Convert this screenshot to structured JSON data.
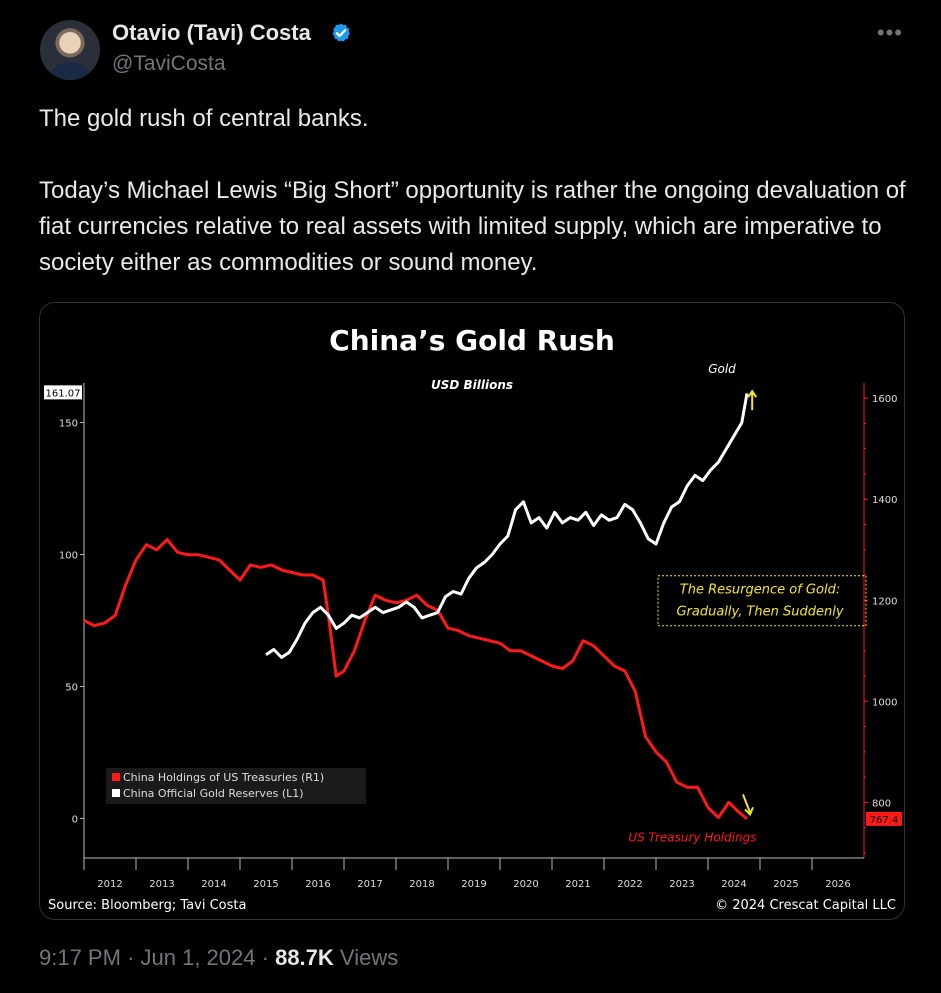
{
  "author": {
    "name": "Otavio (Tavi) Costa",
    "handle": "@TaviCosta"
  },
  "tweet": {
    "paragraph1": "The gold rush of central banks.",
    "paragraph2": "Today’s Michael Lewis “Big Short” opportunity is rather the ongoing devaluation of fiat currencies relative to real assets with limited supply, which are imperative to society either as commodities or sound money."
  },
  "meta": {
    "time": "9:17 PM",
    "date": "Jun 1, 2024",
    "views_count": "88.7K",
    "views_label": "Views"
  },
  "colors": {
    "treasury": "#ff1a1a",
    "gold": "#ffffff",
    "accent": "#f2e62e",
    "verified": "#1d9bf0"
  },
  "icons": {
    "verified": "verified-badge-icon",
    "more": "more-icon"
  },
  "chart_data": {
    "type": "line",
    "title": "China’s Gold Rush",
    "units_label": "USD Billions",
    "left_axis": {
      "ticks": [
        "0",
        "50",
        "100",
        "150"
      ],
      "current_label": "161.07",
      "range": [
        -15,
        165
      ]
    },
    "right_axis": {
      "ticks": [
        "800",
        "1000",
        "1200",
        "1400",
        "1600"
      ],
      "current_label": "767.4",
      "range": [
        690,
        1630
      ]
    },
    "x_ticks": [
      "2012",
      "2013",
      "2014",
      "2015",
      "2016",
      "2017",
      "2018",
      "2019",
      "2020",
      "2021",
      "2022",
      "2023",
      "2024",
      "2025",
      "2026"
    ],
    "x_range": [
      2011.5,
      2026.5
    ],
    "series": [
      {
        "name": "China Holdings of US Treasuries (R1)",
        "axis": "right",
        "x": [
          2011.5,
          2011.7,
          2011.9,
          2012.1,
          2012.3,
          2012.5,
          2012.7,
          2012.9,
          2013.1,
          2013.3,
          2013.5,
          2013.7,
          2013.9,
          2014.1,
          2014.3,
          2014.5,
          2014.7,
          2014.9,
          2015.1,
          2015.3,
          2015.5,
          2015.7,
          2015.9,
          2016.1,
          2016.2,
          2016.35,
          2016.5,
          2016.7,
          2016.9,
          2017.1,
          2017.3,
          2017.5,
          2017.7,
          2017.9,
          2018.1,
          2018.3,
          2018.5,
          2018.7,
          2018.9,
          2019.1,
          2019.3,
          2019.5,
          2019.7,
          2019.9,
          2020.1,
          2020.3,
          2020.5,
          2020.7,
          2020.9,
          2021.1,
          2021.3,
          2021.5,
          2021.7,
          2021.9,
          2022.1,
          2022.3,
          2022.5,
          2022.7,
          2022.9,
          2023.1,
          2023.3,
          2023.5,
          2023.7,
          2023.9,
          2024.1,
          2024.25
        ],
        "y": [
          1160,
          1150,
          1155,
          1170,
          1230,
          1280,
          1310,
          1300,
          1320,
          1295,
          1290,
          1290,
          1285,
          1280,
          1260,
          1240,
          1270,
          1265,
          1270,
          1260,
          1255,
          1250,
          1250,
          1240,
          1170,
          1050,
          1060,
          1100,
          1160,
          1210,
          1200,
          1195,
          1200,
          1210,
          1190,
          1180,
          1145,
          1140,
          1130,
          1125,
          1120,
          1115,
          1100,
          1100,
          1090,
          1080,
          1070,
          1065,
          1080,
          1120,
          1110,
          1090,
          1070,
          1060,
          1020,
          930,
          900,
          880,
          840,
          830,
          830,
          790,
          770,
          800,
          780,
          767.4
        ]
      },
      {
        "name": "China Official Gold Reserves (L1)",
        "axis": "left",
        "x": [
          2015.0,
          2015.15,
          2015.3,
          2015.45,
          2015.6,
          2015.75,
          2015.9,
          2016.05,
          2016.2,
          2016.35,
          2016.5,
          2016.65,
          2016.8,
          2016.95,
          2017.1,
          2017.25,
          2017.4,
          2017.55,
          2017.7,
          2017.85,
          2018.0,
          2018.15,
          2018.3,
          2018.45,
          2018.6,
          2018.75,
          2018.9,
          2019.05,
          2019.2,
          2019.35,
          2019.5,
          2019.65,
          2019.8,
          2019.95,
          2020.1,
          2020.25,
          2020.4,
          2020.55,
          2020.7,
          2020.85,
          2021.0,
          2021.15,
          2021.3,
          2021.45,
          2021.6,
          2021.75,
          2021.9,
          2022.05,
          2022.2,
          2022.35,
          2022.5,
          2022.65,
          2022.8,
          2022.95,
          2023.1,
          2023.25,
          2023.4,
          2023.55,
          2023.7,
          2023.85,
          2024.0,
          2024.15,
          2024.25
        ],
        "y": [
          62,
          64,
          61,
          63,
          68,
          74,
          78,
          80,
          77,
          72,
          74,
          77,
          76,
          78,
          80,
          78,
          79,
          80,
          82,
          80,
          76,
          77,
          78,
          84,
          86,
          85,
          91,
          95,
          97,
          100,
          104,
          107,
          117,
          120,
          112,
          114,
          110,
          116,
          112,
          114,
          113,
          116,
          111,
          115,
          113,
          114,
          119,
          117,
          112,
          106,
          104,
          112,
          118,
          120,
          126,
          130,
          128,
          132,
          135,
          140,
          145,
          150,
          161.07
        ]
      }
    ],
    "annotations": [
      {
        "text": "Gold",
        "x": 2024.0,
        "y": 1650,
        "axis": "right",
        "color": "#ffffff"
      },
      {
        "text": "US Treasury Holdings",
        "x": 2023.2,
        "y": 723,
        "axis": "right",
        "color": "#ff1a1a"
      },
      {
        "text": "The Resurgence of Gold:",
        "x": 2024.5,
        "y": 1213,
        "axis": "right",
        "color": "#f2e62e"
      },
      {
        "text": "Gradually, Then Suddenly",
        "x": 2024.5,
        "y": 1170,
        "axis": "right",
        "color": "#f2e62e"
      }
    ],
    "legend_position": "bottom-left",
    "source": "Source: Bloomberg; Tavi Costa",
    "copyright": "© 2024 Crescat Capital LLC",
    "grid": false
  }
}
